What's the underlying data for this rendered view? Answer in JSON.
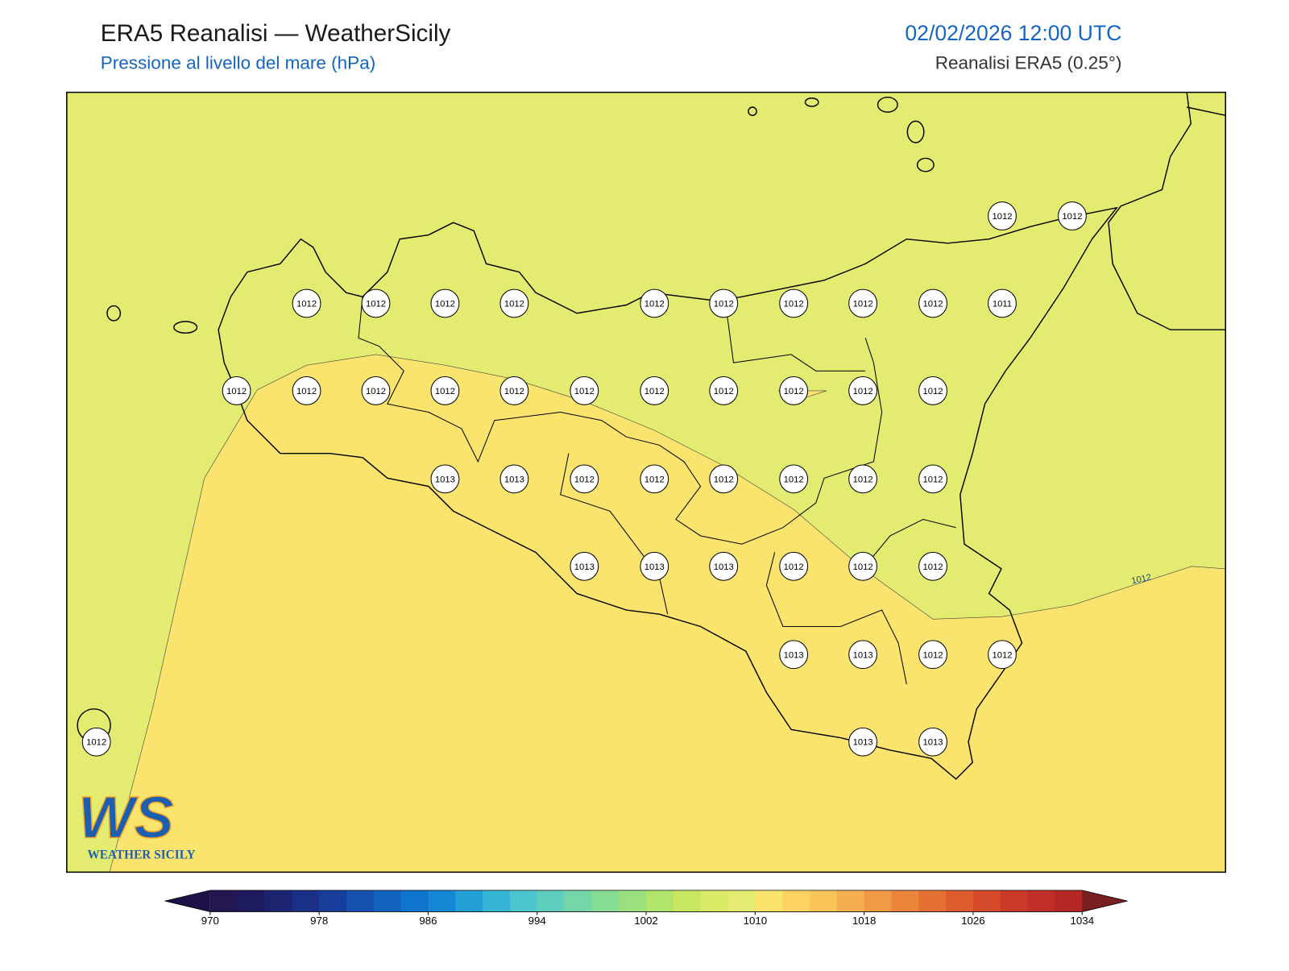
{
  "header": {
    "title": "ERA5 Reanalisi — WeatherSicily",
    "subtitle": "Pressione al livello del mare (hPa)",
    "datetime": "02/02/2026 12:00 UTC",
    "source": "Reanalisi ERA5 (0.25°)"
  },
  "stations": [
    1012,
    1012,
    1012,
    1012,
    1012,
    1012,
    1012,
    1012,
    1012,
    1012,
    1012,
    1011,
    1012,
    1012,
    1012,
    1012,
    1012,
    1012,
    1012,
    1012,
    1012,
    1012,
    1012,
    1013,
    1013,
    1012,
    1012,
    1012,
    1012,
    1012,
    1012,
    1013,
    1013,
    1013,
    1012,
    1012,
    1012,
    1013,
    1013,
    1012,
    1012,
    1012,
    1013,
    1013
  ],
  "contour_labels": [
    "1012"
  ],
  "colorbar": {
    "ticks": [
      970,
      978,
      986,
      994,
      1002,
      1010,
      1018,
      1026,
      1034
    ],
    "lim": [
      970,
      1034
    ],
    "colors": [
      "#231651",
      "#1d1a5e",
      "#1c2470",
      "#1a2f86",
      "#173d9b",
      "#1550ae",
      "#1262bf",
      "#0f74cc",
      "#1488d4",
      "#23a0d6",
      "#34b6d4",
      "#4cc6cc",
      "#5fcebd",
      "#74d6a8",
      "#86dc92",
      "#9ae07e",
      "#b0e46c",
      "#c7e763",
      "#dbea66",
      "#e3ec71",
      "#fbe46e",
      "#fdd35f",
      "#f9c559",
      "#f4b04f",
      "#f09a45",
      "#eb853c",
      "#e47034",
      "#dd5c2e",
      "#d44a2a",
      "#ca3a28",
      "#c02e27",
      "#b52626"
    ],
    "under": "#1e1148",
    "over": "#7a1f1f"
  },
  "logo": {
    "mark": "WS",
    "text": "WEATHER SICILY"
  }
}
